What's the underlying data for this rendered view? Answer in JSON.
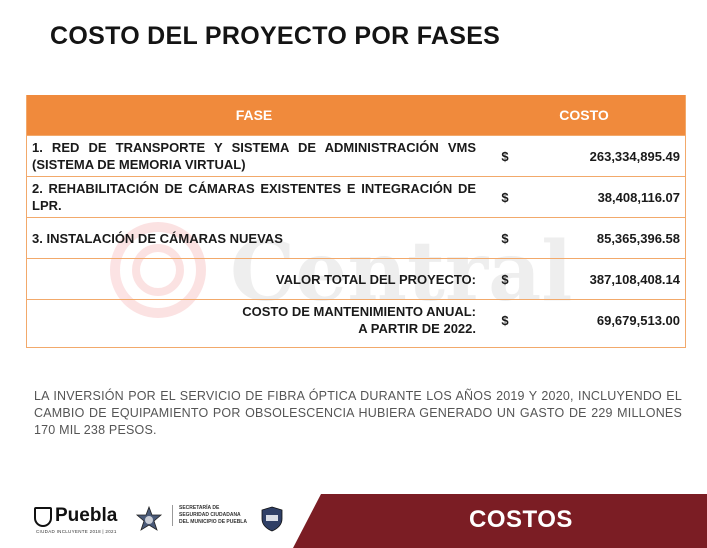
{
  "title": "COSTO DEL PROYECTO POR FASES",
  "table": {
    "headers": {
      "phase": "FASE",
      "cost": "COSTO"
    },
    "rows": [
      {
        "description": "1. RED DE TRANSPORTE Y SISTEMA DE ADMINISTRACIÓN VMS (SISTEMA DE MEMORIA VIRTUAL)",
        "currency": "$",
        "amount": "263,334,895.49"
      },
      {
        "description": "2. REHABILITACIÓN DE CÁMARAS EXISTENTES E INTEGRACIÓN DE LPR.",
        "currency": "$",
        "amount": "38,408,116.07"
      },
      {
        "description": "3. INSTALACIÓN DE CÁMARAS NUEVAS",
        "currency": "$",
        "amount": "85,365,396.58"
      }
    ],
    "total": {
      "label": "VALOR TOTAL DEL PROYECTO:",
      "currency": "$",
      "amount": "387,108,408.14"
    },
    "maintenance": {
      "label_line1": "COSTO DE MANTENIMIENTO ANUAL:",
      "label_line2": "A PARTIR DE 2022.",
      "currency": "$",
      "amount": "69,679,513.00"
    }
  },
  "note": "LA INVERSIÓN POR EL SERVICIO DE FIBRA ÓPTICA DURANTE LOS AÑOS 2019 Y 2020, INCLUYENDO EL CAMBIO DE EQUIPAMIENTO POR OBSOLESCENCIA HUBIERA GENERADO UN GASTO DE 229 MILLONES 170 MIL 238 PESOS.",
  "watermark": "Central",
  "footer": {
    "banner": "COSTOS",
    "puebla_logo": "Puebla",
    "puebla_tagline": "CIUDAD INCLUYENTE 2018 | 2021",
    "secretaria_line1": "SECRETARÍA DE",
    "secretaria_line2": "SEGURIDAD CIUDADANA",
    "secretaria_line3": "DEL MUNICIPIO DE PUEBLA"
  },
  "colors": {
    "header_orange": "#f08a3c",
    "banner_maroon": "#7b1d24",
    "watermark_red": "#e8262c"
  }
}
